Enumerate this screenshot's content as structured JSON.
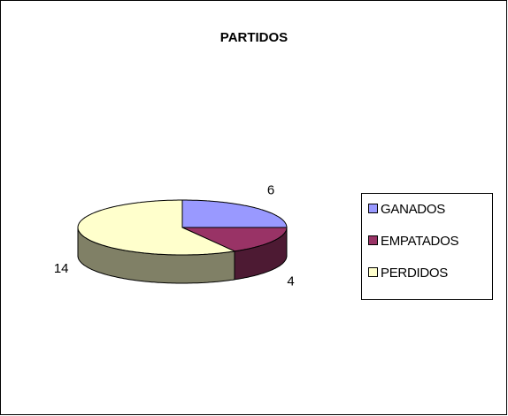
{
  "chart_data": {
    "type": "pie3d",
    "title": "PARTIDOS",
    "categories": [
      "GANADOS",
      "EMPATADOS",
      "PERDIDOS"
    ],
    "values": [
      6,
      4,
      14
    ],
    "colors": [
      "#9999ff",
      "#993366",
      "#ffffcc"
    ],
    "legend": "right"
  }
}
